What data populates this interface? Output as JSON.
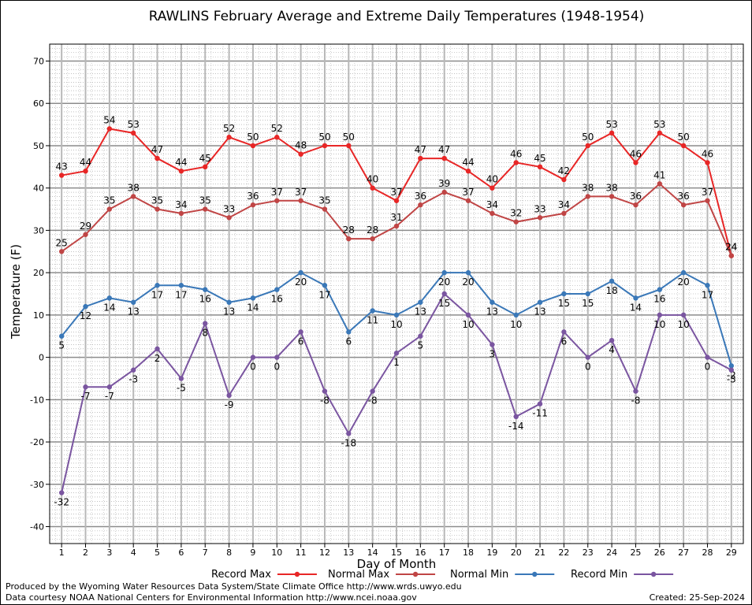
{
  "chart_data": {
    "type": "line",
    "title": "RAWLINS February Average and Extreme Daily Temperatures (1948-1954)",
    "xlabel": "Day of Month",
    "ylabel": "Temperature (F)",
    "ylim": [
      -44,
      74
    ],
    "yticks": [
      -40,
      -30,
      -20,
      -10,
      0,
      10,
      20,
      30,
      40,
      50,
      60,
      70
    ],
    "x": [
      1,
      2,
      3,
      4,
      5,
      6,
      7,
      8,
      9,
      10,
      11,
      12,
      13,
      14,
      15,
      16,
      17,
      18,
      19,
      20,
      21,
      22,
      23,
      24,
      25,
      26,
      27,
      28,
      29
    ],
    "grid": true,
    "legend_position": "bottom",
    "series": [
      {
        "name": "Record Max",
        "color": "#e82626",
        "label_position": "above",
        "values": [
          43,
          44,
          54,
          53,
          47,
          44,
          45,
          52,
          50,
          52,
          48,
          50,
          50,
          40,
          37,
          47,
          47,
          44,
          40,
          46,
          45,
          42,
          50,
          53,
          46,
          53,
          50,
          46,
          24
        ]
      },
      {
        "name": "Normal Max",
        "color": "#c04545",
        "label_position": "above",
        "values": [
          25,
          29,
          35,
          38,
          35,
          34,
          35,
          33,
          36,
          37,
          37,
          35,
          28,
          28,
          31,
          36,
          39,
          37,
          34,
          32,
          33,
          34,
          38,
          38,
          36,
          41,
          36,
          37,
          24
        ]
      },
      {
        "name": "Normal Min",
        "color": "#3a78b8",
        "label_position": "below",
        "values": [
          5,
          12,
          14,
          13,
          17,
          17,
          16,
          13,
          14,
          16,
          20,
          17,
          6,
          11,
          10,
          13,
          20,
          20,
          13,
          10,
          13,
          15,
          15,
          18,
          14,
          16,
          20,
          17,
          -2
        ]
      },
      {
        "name": "Record Min",
        "color": "#7a55a0",
        "label_position": "below",
        "values": [
          -32,
          -7,
          -7,
          -3,
          2,
          -5,
          8,
          -9,
          0,
          0,
          6,
          -8,
          -18,
          -8,
          1,
          5,
          15,
          10,
          3,
          -14,
          -11,
          6,
          0,
          4,
          -8,
          10,
          10,
          0,
          -3
        ]
      }
    ]
  },
  "footer": {
    "produced_by": "Produced by the Wyoming Water Resources Data System/State Climate Office http://www.wrds.uwyo.edu",
    "data_courtesy": "Data courtesy NOAA National Centers for Environmental Information http://www.ncei.noaa.gov",
    "created": "Created:  25-Sep-2024"
  }
}
